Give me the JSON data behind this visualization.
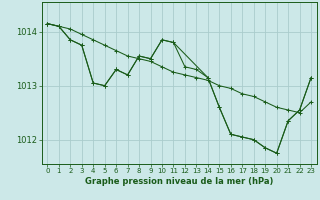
{
  "title": "Graphe pression niveau de la mer (hPa)",
  "background_color": "#cce8e8",
  "grid_color": "#aacccc",
  "line_color": "#1a5c1a",
  "marker_color": "#1a5c1a",
  "xlim": [
    -0.5,
    23.5
  ],
  "ylim": [
    1011.55,
    1014.55
  ],
  "yticks": [
    1012,
    1013,
    1014
  ],
  "xticks": [
    0,
    1,
    2,
    3,
    4,
    5,
    6,
    7,
    8,
    9,
    10,
    11,
    12,
    13,
    14,
    15,
    16,
    17,
    18,
    19,
    20,
    21,
    22,
    23
  ],
  "series": [
    {
      "x": [
        0,
        1,
        2,
        3,
        4,
        5,
        6,
        7,
        8,
        9,
        10,
        11,
        12,
        13,
        14,
        15,
        16,
        17,
        18,
        19,
        20,
        21,
        22,
        23
      ],
      "y": [
        1014.15,
        1014.1,
        1014.05,
        1013.95,
        1013.85,
        1013.75,
        1013.65,
        1013.55,
        1013.5,
        1013.45,
        1013.35,
        1013.25,
        1013.2,
        1013.15,
        1013.1,
        1013.0,
        1012.95,
        1012.85,
        1012.8,
        1012.7,
        1012.6,
        1012.55,
        1012.5,
        1012.7
      ]
    },
    {
      "x": [
        0,
        1,
        2,
        3,
        4,
        5,
        6,
        7,
        8,
        9,
        10,
        11,
        12,
        13,
        14,
        15,
        16,
        17,
        18,
        19,
        20,
        21,
        22,
        23
      ],
      "y": [
        1014.15,
        1014.1,
        1013.85,
        1013.75,
        1013.05,
        1013.0,
        1013.3,
        1013.2,
        1013.55,
        1013.5,
        1013.85,
        1013.8,
        1013.35,
        1013.3,
        1013.15,
        1012.6,
        1012.1,
        1012.05,
        1012.0,
        1011.85,
        1011.75,
        1012.35,
        1012.55,
        1013.15
      ]
    },
    {
      "x": [
        0,
        1,
        2,
        3,
        4,
        5,
        6,
        7,
        8,
        9,
        10,
        11,
        14,
        15,
        16,
        17,
        18,
        19,
        20,
        21,
        22,
        23
      ],
      "y": [
        1014.15,
        1014.1,
        1013.85,
        1013.75,
        1013.05,
        1013.0,
        1013.3,
        1013.2,
        1013.55,
        1013.5,
        1013.85,
        1013.8,
        1013.15,
        1012.6,
        1012.1,
        1012.05,
        1012.0,
        1011.85,
        1011.75,
        1012.35,
        1012.55,
        1013.15
      ]
    }
  ]
}
